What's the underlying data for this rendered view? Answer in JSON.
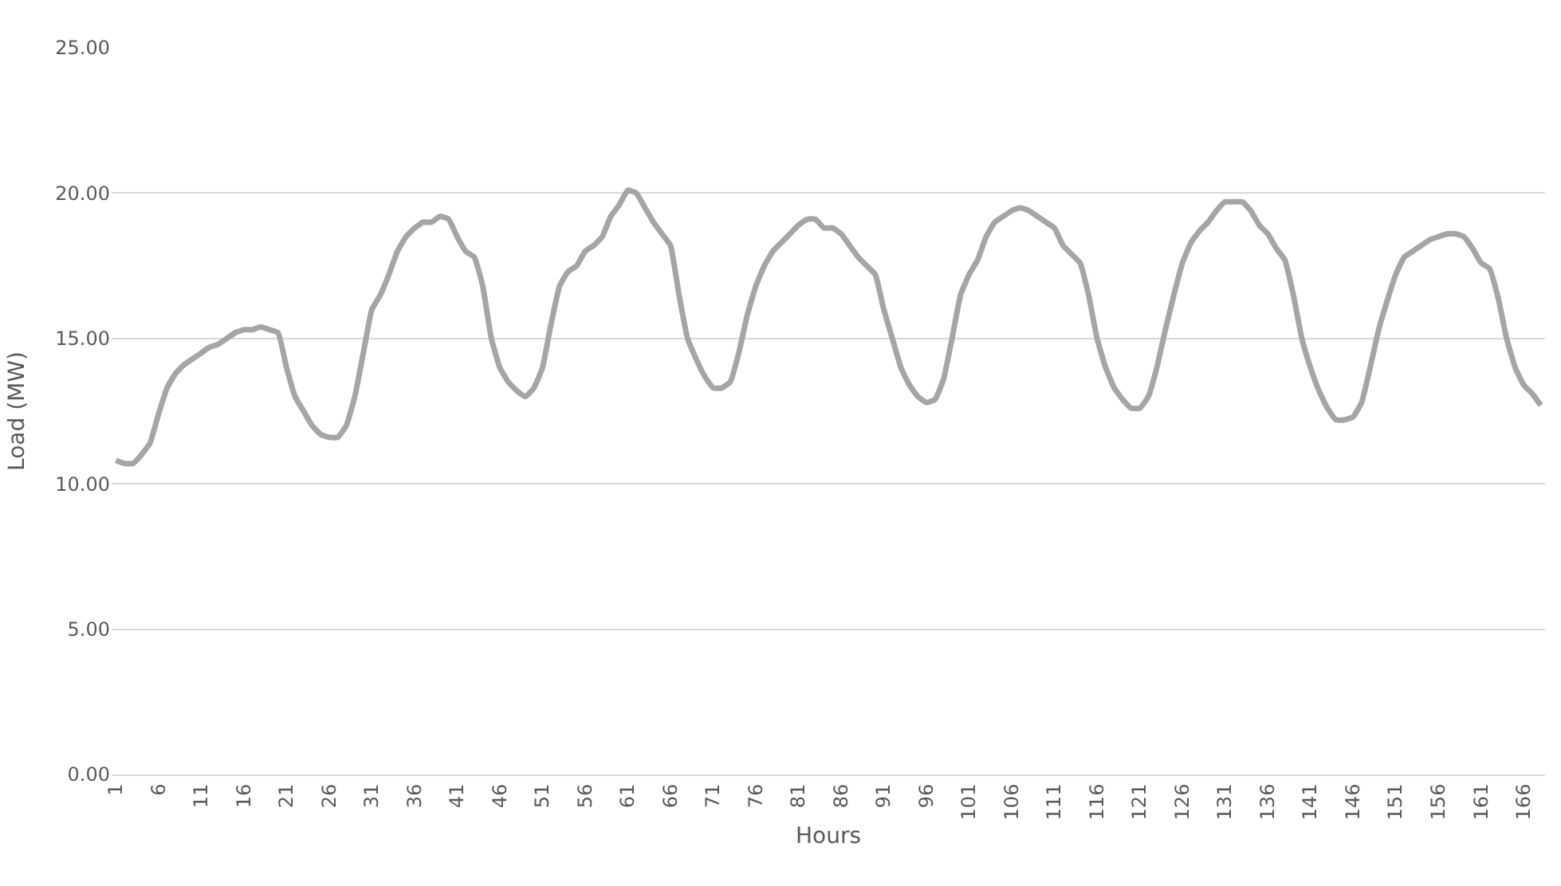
{
  "chart_data": {
    "type": "line",
    "xlabel": "Hours",
    "ylabel": "Load (MW)",
    "categories": [
      "1",
      null,
      null,
      null,
      null,
      "6",
      null,
      null,
      null,
      null,
      "11",
      null,
      null,
      null,
      null,
      "16",
      null,
      null,
      null,
      null,
      "21",
      null,
      null,
      null,
      null,
      "26",
      null,
      null,
      null,
      null,
      "31",
      null,
      null,
      null,
      null,
      "36",
      null,
      null,
      null,
      null,
      "41",
      null,
      null,
      null,
      null,
      "46",
      null,
      null,
      null,
      null,
      "51",
      null,
      null,
      null,
      null,
      "56",
      null,
      null,
      null,
      null,
      "61",
      null,
      null,
      null,
      null,
      "66",
      null,
      null,
      null,
      null,
      "71",
      null,
      null,
      null,
      null,
      "76",
      null,
      null,
      null,
      null,
      "81",
      null,
      null,
      null,
      null,
      "86",
      null,
      null,
      null,
      null,
      "91",
      null,
      null,
      null,
      null,
      "96",
      null,
      null,
      null,
      null,
      "101",
      null,
      null,
      null,
      null,
      "106",
      null,
      null,
      null,
      null,
      "111",
      null,
      null,
      null,
      null,
      "116",
      null,
      null,
      null,
      null,
      "121",
      null,
      null,
      null,
      null,
      "126",
      null,
      null,
      null,
      null,
      "131",
      null,
      null,
      null,
      null,
      "136",
      null,
      null,
      null,
      null,
      "141",
      null,
      null,
      null,
      null,
      "146",
      null,
      null,
      null,
      null,
      "151",
      null,
      null,
      null,
      null,
      "156",
      null,
      null,
      null,
      null,
      "161",
      null,
      null,
      null,
      null,
      "166",
      null,
      null
    ],
    "series": [
      {
        "color": "#a5a5a5",
        "values": [
          10.8,
          10.7,
          10.7,
          11.0,
          11.4,
          12.4,
          13.3,
          13.8,
          14.1,
          14.3,
          14.5,
          14.7,
          14.8,
          15.0,
          15.2,
          15.3,
          15.3,
          15.4,
          15.3,
          15.2,
          14.0,
          13.0,
          12.5,
          12.0,
          11.7,
          11.6,
          11.6,
          12.0,
          13.0,
          14.5,
          16.0,
          16.5,
          17.2,
          18.0,
          18.5,
          18.8,
          19.0,
          19.0,
          19.2,
          19.1,
          18.5,
          18.0,
          17.8,
          16.8,
          15.0,
          14.0,
          13.5,
          13.2,
          13.0,
          13.3,
          14.0,
          15.5,
          16.8,
          17.3,
          17.5,
          18.0,
          18.2,
          18.5,
          19.2,
          19.6,
          20.1,
          20.0,
          19.5,
          19.0,
          18.6,
          18.2,
          16.5,
          15.0,
          14.3,
          13.7,
          13.3,
          13.3,
          13.5,
          14.5,
          15.8,
          16.8,
          17.5,
          18.0,
          18.3,
          18.6,
          18.9,
          19.1,
          19.1,
          18.8,
          18.8,
          18.6,
          18.2,
          17.8,
          17.5,
          17.2,
          16.0,
          15.0,
          14.0,
          13.4,
          13.0,
          12.8,
          12.9,
          13.6,
          15.0,
          16.5,
          17.2,
          17.7,
          18.5,
          19.0,
          19.2,
          19.4,
          19.5,
          19.4,
          19.2,
          19.0,
          18.8,
          18.2,
          17.9,
          17.6,
          16.5,
          15.0,
          14.0,
          13.3,
          12.9,
          12.6,
          12.6,
          13.0,
          14.0,
          15.3,
          16.5,
          17.6,
          18.3,
          18.7,
          19.0,
          19.4,
          19.7,
          19.7,
          19.7,
          19.4,
          18.9,
          18.6,
          18.1,
          17.7,
          16.5,
          15.0,
          14.0,
          13.2,
          12.6,
          12.2,
          12.2,
          12.3,
          12.8,
          14.0,
          15.3,
          16.3,
          17.2,
          17.8,
          18.0,
          18.2,
          18.4,
          18.5,
          18.6,
          18.6,
          18.5,
          18.1,
          17.6,
          17.4,
          16.4,
          15.0,
          14.0,
          13.4,
          13.1,
          12.7
        ]
      }
    ],
    "ylim": [
      0,
      25
    ],
    "yticks": [
      {
        "value": 0,
        "label": "0.00"
      },
      {
        "value": 5,
        "label": "5.00"
      },
      {
        "value": 10,
        "label": "10.00"
      },
      {
        "value": 15,
        "label": "15.00"
      },
      {
        "value": 20,
        "label": "20.00"
      },
      {
        "value": 25,
        "label": "25.00"
      }
    ],
    "grid": "y",
    "marker": "none",
    "line_style": "solid",
    "legend": false
  }
}
